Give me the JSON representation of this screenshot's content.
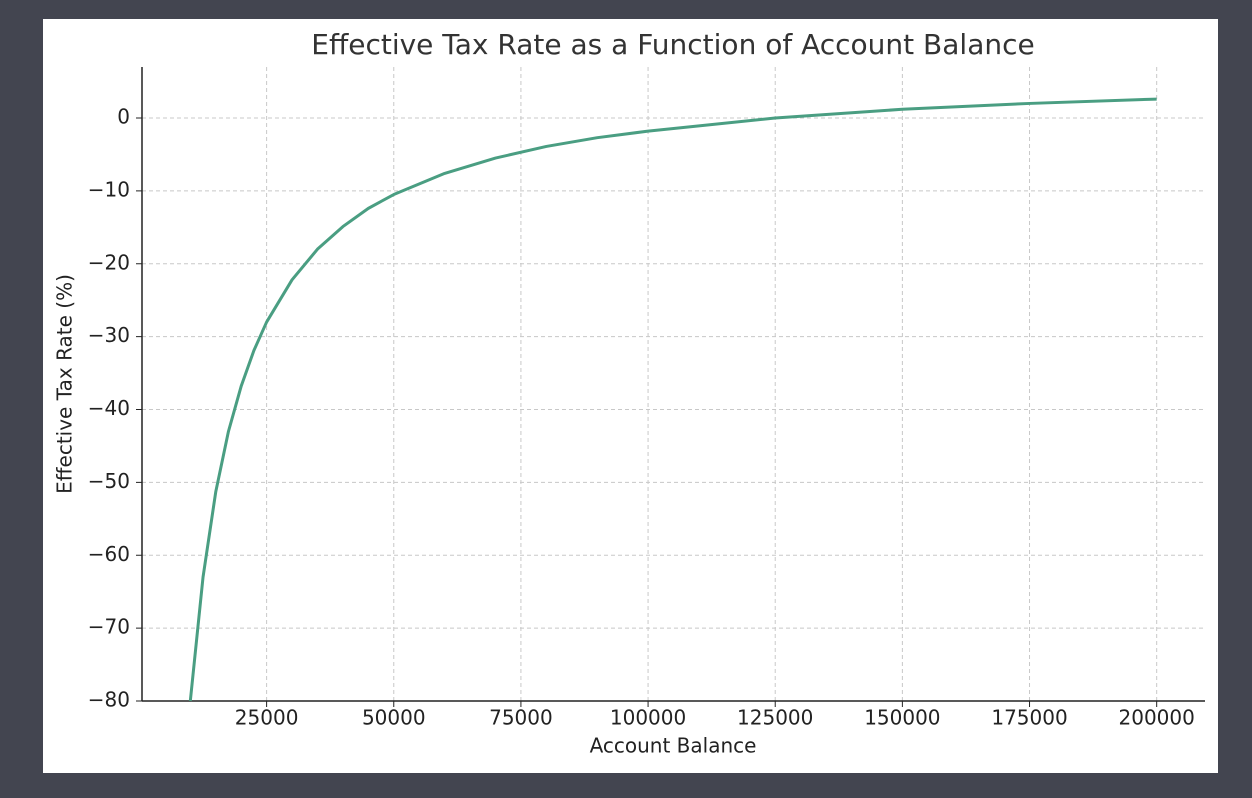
{
  "chart_data": {
    "type": "line",
    "title": "Effective Tax Rate as a Function of Account Balance",
    "x_label": "Account Balance",
    "y_label": "Effective Tax Rate (%)",
    "x": [
      10000,
      12500,
      15000,
      17500,
      20000,
      22500,
      25000,
      30000,
      35000,
      40000,
      45000,
      50000,
      60000,
      70000,
      80000,
      90000,
      100000,
      125000,
      150000,
      175000,
      200000
    ],
    "series": [
      {
        "color": "#4a9e82",
        "values": [
          -80,
          -63,
          -51.3,
          -43,
          -36.8,
          -31.9,
          -28,
          -22.2,
          -18,
          -14.9,
          -12.4,
          -10.5,
          -7.6,
          -5.5,
          -3.9,
          -2.7,
          -1.8,
          0,
          1.2,
          2,
          2.6
        ]
      }
    ],
    "xlim": [
      500,
      209500
    ],
    "ylim": [
      -80,
      7
    ],
    "xticks": [
      25000,
      50000,
      75000,
      100000,
      125000,
      150000,
      175000,
      200000
    ],
    "yticks": [
      {
        "value": -80,
        "label": "−80"
      },
      {
        "value": -70,
        "label": "−70"
      },
      {
        "value": -60,
        "label": "−60"
      },
      {
        "value": -50,
        "label": "−50"
      },
      {
        "value": -40,
        "label": "−40"
      },
      {
        "value": -30,
        "label": "−30"
      },
      {
        "value": -20,
        "label": "−20"
      },
      {
        "value": -10,
        "label": "−10"
      },
      0
    ],
    "grid": true
  }
}
